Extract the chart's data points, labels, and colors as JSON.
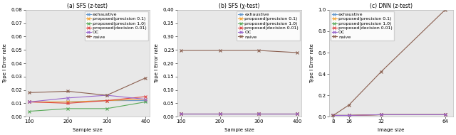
{
  "subplot1": {
    "title": "(a) SFS (z-test)",
    "xlabel": "Sample size",
    "ylabel": "Type I Error rate",
    "xlim": [
      90,
      410
    ],
    "ylim": [
      0.0,
      0.08
    ],
    "yticks": [
      0.0,
      0.01,
      0.02,
      0.03,
      0.04,
      0.05,
      0.06,
      0.07,
      0.08
    ],
    "xticks": [
      100,
      200,
      300,
      400
    ],
    "x": [
      100,
      200,
      300,
      400
    ],
    "series": {
      "exhaustive": [
        0.011,
        0.011,
        0.012,
        0.012
      ],
      "proposed_prec01": [
        0.011,
        0.011,
        0.012,
        0.013
      ],
      "proposed_prec10": [
        0.004,
        0.006,
        0.006,
        0.011
      ],
      "proposed_dec001": [
        0.011,
        0.01,
        0.012,
        0.015
      ],
      "OC": [
        0.011,
        0.014,
        0.016,
        0.013
      ],
      "naive": [
        0.018,
        0.019,
        0.016,
        0.029
      ]
    },
    "legend_loc": "upper right"
  },
  "subplot2": {
    "title": "(b) SFS (χ-test)",
    "xlabel": "Sample size",
    "ylabel": "Type I Error rate",
    "xlim": [
      90,
      410
    ],
    "ylim": [
      0.0,
      0.4
    ],
    "yticks": [
      0.0,
      0.05,
      0.1,
      0.15,
      0.2,
      0.25,
      0.3,
      0.35,
      0.4
    ],
    "xticks": [
      100,
      200,
      300,
      400
    ],
    "x": [
      100,
      200,
      300,
      400
    ],
    "series": {
      "exhaustive": [
        0.011,
        0.011,
        0.011,
        0.011
      ],
      "proposed_prec01": [
        0.011,
        0.011,
        0.011,
        0.011
      ],
      "proposed_prec10": [
        0.011,
        0.011,
        0.011,
        0.011
      ],
      "proposed_dec001": [
        0.011,
        0.011,
        0.011,
        0.011
      ],
      "OC": [
        0.011,
        0.011,
        0.011,
        0.011
      ],
      "naive": [
        0.248,
        0.248,
        0.248,
        0.24
      ]
    },
    "legend_loc": "upper right"
  },
  "subplot3": {
    "title": "(c) DNN (z-test)",
    "xlabel": "Image size",
    "ylabel": "Type I Error rate",
    "xlim": [
      6,
      68
    ],
    "ylim": [
      0.0,
      1.0
    ],
    "yticks": [
      0.0,
      0.2,
      0.4,
      0.6,
      0.8,
      1.0
    ],
    "xticks": [
      8,
      16,
      32,
      64
    ],
    "x": [
      8,
      16,
      32,
      64
    ],
    "series": {
      "exhaustive": [
        0.011,
        0.011,
        0.018,
        0.018
      ],
      "proposed_prec01": [
        0.011,
        0.011,
        0.018,
        0.018
      ],
      "proposed_prec10": [
        0.011,
        0.011,
        0.018,
        0.018
      ],
      "proposed_dec001": [
        0.011,
        0.011,
        0.018,
        0.018
      ],
      "OC": [
        0.011,
        0.011,
        0.018,
        0.018
      ],
      "naive": [
        0.01,
        0.11,
        0.42,
        1.0
      ]
    },
    "legend_loc": "upper left"
  },
  "legend_labels": [
    "exhaustive",
    "proposed(precision 0.1)",
    "proposed(precision 1.0)",
    "proposed(decision 0.01)",
    "OC",
    "naive"
  ],
  "colors": {
    "exhaustive": "#6699cc",
    "proposed_prec01": "#f4a535",
    "proposed_prec10": "#5aaa5a",
    "proposed_dec001": "#dd4444",
    "OC": "#9966cc",
    "naive": "#8B6050"
  },
  "marker": "x",
  "linewidth": 0.8,
  "markersize": 3.5,
  "markeredgewidth": 0.8,
  "fontsize_label": 5.0,
  "fontsize_tick": 5.0,
  "fontsize_title": 5.5,
  "fontsize_legend": 4.5,
  "axes_bg": "#e8e8e8",
  "fig_bg": "white"
}
